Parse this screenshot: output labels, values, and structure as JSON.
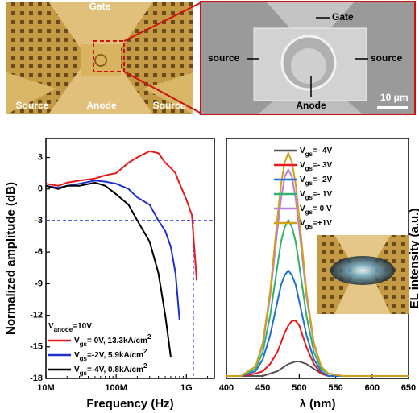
{
  "images": {
    "left": {
      "labels": [
        "Gate",
        "Source",
        "Anode",
        "Source"
      ]
    },
    "right": {
      "labels": [
        "Gate",
        "source",
        "source",
        "Anode"
      ],
      "scale_bar": "10 μm"
    }
  },
  "chart_data": [
    {
      "type": "line",
      "log_x": true,
      "xlabel": "Frequency (Hz)",
      "ylabel": "Normalized amplitude (dB)",
      "xlim": [
        10000000,
        2500000000
      ],
      "ylim": [
        -18,
        4.8
      ],
      "xticks": [
        {
          "value": 10000000,
          "label": "10M"
        },
        {
          "value": 100000000,
          "label": "100M"
        },
        {
          "value": 1000000000,
          "label": "1G"
        }
      ],
      "yticks": [
        3,
        0,
        -3,
        -6,
        -9,
        -12,
        -15,
        -18
      ],
      "hline": -3,
      "vline": 1250000000,
      "ref_color": "#1f2fd0",
      "legend_title": [
        "V",
        "anode",
        "=10V"
      ],
      "series": [
        {
          "name": [
            "V",
            "gs",
            "= 0V, 13.3kA/cm",
            "2"
          ],
          "color": "#e8191c",
          "x": [
            10000000,
            15000000,
            20000000,
            30000000,
            50000000,
            70000000,
            100000000,
            150000000,
            200000000,
            300000000,
            400000000,
            500000000,
            600000000,
            700000000,
            800000000,
            1000000000,
            1200000000,
            1400000000
          ],
          "values": [
            0.5,
            0.3,
            0.6,
            0.8,
            1.0,
            1.3,
            1.5,
            2.5,
            3.0,
            3.6,
            3.4,
            2.5,
            2.0,
            1.5,
            0.5,
            -1.0,
            -2.5,
            -8.7
          ]
        },
        {
          "name": [
            "V",
            "gs",
            "=-2V, 5.9kA/cm",
            "2"
          ],
          "color": "#1f2fd0",
          "x": [
            10000000,
            15000000,
            20000000,
            30000000,
            50000000,
            70000000,
            100000000,
            150000000,
            200000000,
            300000000,
            400000000,
            500000000,
            600000000,
            700000000,
            800000000
          ],
          "values": [
            0.3,
            0.1,
            0.3,
            0.5,
            0.8,
            0.7,
            0.5,
            0.0,
            -0.8,
            -1.5,
            -3.0,
            -4.0,
            -5.5,
            -8.0,
            -12.5
          ]
        },
        {
          "name": [
            "V",
            "gs",
            "=-4V, 0.8kA/cm",
            "2"
          ],
          "color": "#000000",
          "x": [
            10000000,
            15000000,
            20000000,
            30000000,
            50000000,
            70000000,
            100000000,
            150000000,
            200000000,
            300000000,
            400000000,
            500000000,
            600000000
          ],
          "values": [
            0.3,
            0.0,
            0.3,
            0.3,
            0.6,
            0.3,
            -0.5,
            -1.5,
            -3.0,
            -5.0,
            -8.0,
            -12.0,
            -16.0
          ]
        }
      ]
    },
    {
      "type": "line",
      "xlabel": "λ (nm)",
      "ylabel": "EL intensity (a.u.)",
      "xlim": [
        400,
        650
      ],
      "ylim": [
        0,
        1
      ],
      "xticks": [
        400,
        450,
        500,
        550,
        600,
        650
      ],
      "x": [
        400,
        420,
        440,
        450,
        460,
        470,
        475,
        480,
        485,
        490,
        495,
        500,
        510,
        520,
        530,
        540,
        560,
        600,
        650
      ],
      "series": [
        {
          "name": [
            "V",
            "gs",
            "=- 4V"
          ],
          "color": "#555555",
          "values": [
            0.01,
            0.01,
            0.01,
            0.01,
            0.02,
            0.03,
            0.04,
            0.05,
            0.06,
            0.065,
            0.07,
            0.07,
            0.06,
            0.04,
            0.02,
            0.01,
            0.01,
            0.01,
            0.01
          ]
        },
        {
          "name": [
            "V",
            "gs",
            "=- 3V"
          ],
          "color": "#e8191c",
          "values": [
            0.01,
            0.01,
            0.02,
            0.03,
            0.06,
            0.11,
            0.15,
            0.19,
            0.22,
            0.24,
            0.24,
            0.22,
            0.13,
            0.06,
            0.02,
            0.01,
            0.01,
            0.01,
            0.01
          ]
        },
        {
          "name": [
            "V",
            "gs",
            "=- 2V"
          ],
          "color": "#1f6fd0",
          "values": [
            0.01,
            0.01,
            0.03,
            0.08,
            0.18,
            0.32,
            0.39,
            0.43,
            0.45,
            0.43,
            0.39,
            0.32,
            0.18,
            0.08,
            0.03,
            0.01,
            0.01,
            0.01,
            0.01
          ]
        },
        {
          "name": [
            "V",
            "gs",
            "=- 1V"
          ],
          "color": "#2db36b",
          "values": [
            0.01,
            0.01,
            0.04,
            0.11,
            0.26,
            0.47,
            0.57,
            0.63,
            0.66,
            0.63,
            0.57,
            0.47,
            0.26,
            0.11,
            0.04,
            0.02,
            0.01,
            0.01,
            0.01
          ]
        },
        {
          "name": [
            "V",
            "gs",
            "= 0 V"
          ],
          "color": "#b77fe0",
          "values": [
            0.01,
            0.01,
            0.05,
            0.14,
            0.34,
            0.62,
            0.75,
            0.84,
            0.87,
            0.84,
            0.75,
            0.62,
            0.34,
            0.14,
            0.05,
            0.02,
            0.01,
            0.01,
            0.01
          ]
        },
        {
          "name": [
            "V",
            "gs",
            "=+1V"
          ],
          "color": "#d4a017",
          "values": [
            0.01,
            0.01,
            0.05,
            0.15,
            0.36,
            0.67,
            0.81,
            0.9,
            0.94,
            0.9,
            0.81,
            0.67,
            0.36,
            0.15,
            0.05,
            0.02,
            0.01,
            0.01,
            0.01
          ]
        }
      ]
    }
  ]
}
